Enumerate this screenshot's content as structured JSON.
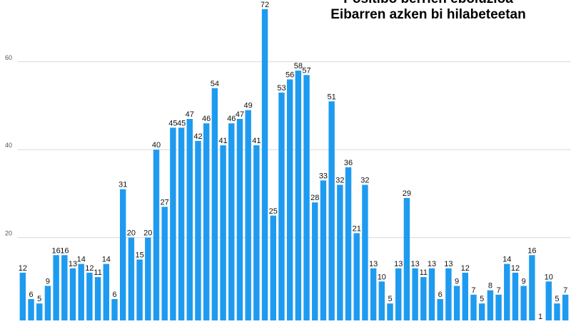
{
  "chart_data": {
    "type": "bar",
    "title_lines": [
      "Positibo berrien eboluzioa",
      "Eibarren azken bi hilabeteetan"
    ],
    "xlabel": "",
    "ylabel": "",
    "ylim": [
      0,
      72
    ],
    "yticks": [
      20,
      40,
      60
    ],
    "grid": true,
    "legend": "none",
    "bar_color": "#1e9bf0",
    "grid_color": "#d9d9d9",
    "values": [
      12,
      6,
      5,
      9,
      16,
      16,
      13,
      14,
      12,
      11,
      14,
      6,
      31,
      20,
      15,
      20,
      40,
      27,
      45,
      45,
      47,
      42,
      46,
      54,
      41,
      46,
      47,
      49,
      41,
      72,
      25,
      53,
      56,
      58,
      57,
      28,
      33,
      51,
      32,
      36,
      21,
      32,
      13,
      10,
      5,
      13,
      29,
      13,
      11,
      13,
      6,
      13,
      9,
      12,
      7,
      5,
      8,
      7,
      14,
      12,
      9,
      16,
      1,
      10,
      5,
      7
    ]
  }
}
